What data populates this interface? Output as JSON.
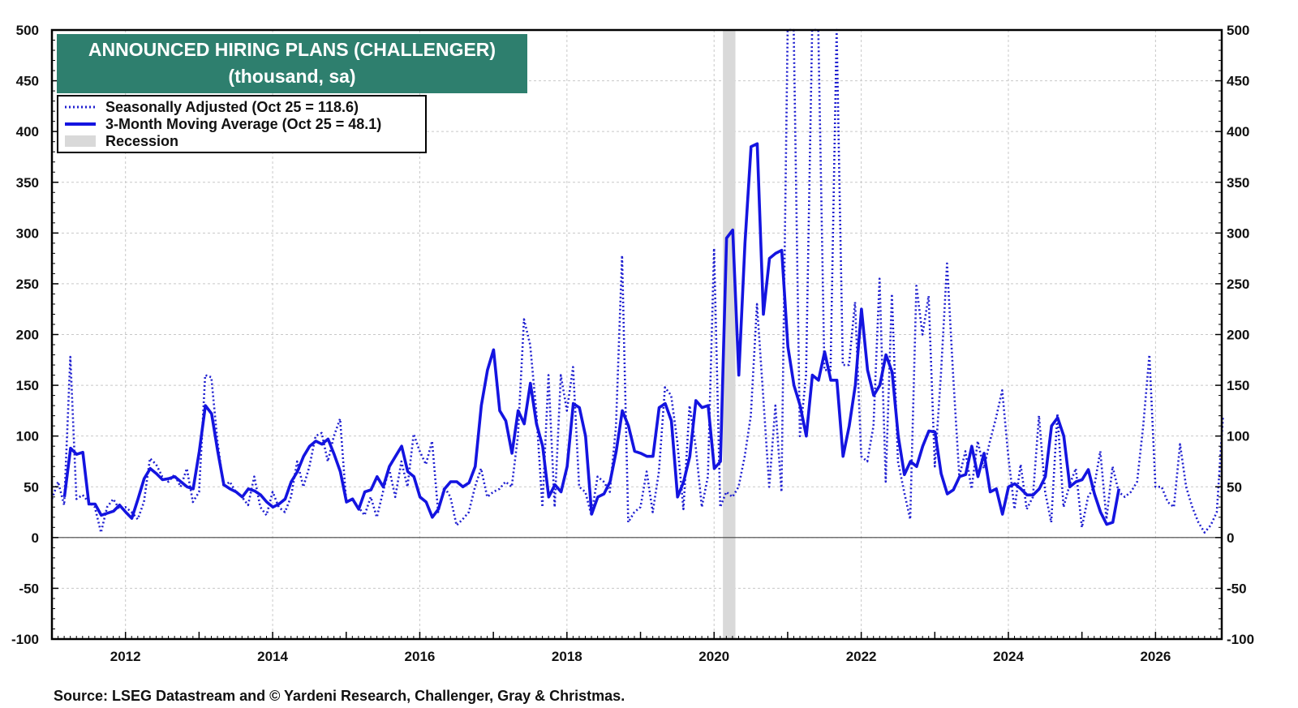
{
  "chart_data": {
    "type": "line",
    "title": "ANNOUNCED HIRING PLANS (CHALLENGER)",
    "subtitle": "(thousand, sa)",
    "ylim": [
      -100,
      500
    ],
    "yticks": [
      -100,
      -50,
      0,
      50,
      100,
      150,
      200,
      250,
      300,
      350,
      400,
      450,
      500
    ],
    "xlim": [
      2011.0,
      2026.9
    ],
    "xticks": [
      2012,
      2014,
      2016,
      2018,
      2020,
      2022,
      2024,
      2026
    ],
    "grid": true,
    "legend_position": "top-left",
    "recession": [
      2020.12,
      2020.29
    ],
    "series": [
      {
        "name": "Seasonally Adjusted (Oct 25 = 118.6)",
        "style": "dotted",
        "color": "#1f1fd0",
        "x_start": 2011.0,
        "step": 0.08333,
        "values": [
          38,
          55,
          32,
          178,
          38,
          42,
          35,
          30,
          5,
          30,
          38,
          28,
          30,
          25,
          18,
          35,
          78,
          72,
          60,
          55,
          62,
          50,
          68,
          35,
          45,
          160,
          158,
          95,
          50,
          55,
          45,
          40,
          32,
          60,
          30,
          22,
          45,
          30,
          25,
          40,
          75,
          50,
          70,
          100,
          103,
          75,
          100,
          117,
          35,
          38,
          30,
          22,
          40,
          20,
          45,
          68,
          40,
          75,
          50,
          102,
          85,
          72,
          95,
          25,
          50,
          40,
          12,
          18,
          25,
          50,
          68,
          40,
          45,
          48,
          55,
          50,
          100,
          215,
          190,
          125,
          30,
          160,
          30,
          160,
          125,
          168,
          50,
          45,
          22,
          60,
          55,
          45,
          110,
          278,
          15,
          25,
          30,
          65,
          25,
          65,
          148,
          140,
          95,
          28,
          130,
          90,
          30,
          60,
          285,
          30,
          45,
          40,
          50,
          80,
          120,
          230,
          140,
          50,
          130,
          45,
          500,
          500,
          100,
          160,
          500,
          500,
          165,
          165,
          500,
          170,
          170,
          232,
          80,
          75,
          110,
          255,
          55,
          240,
          75,
          45,
          18,
          248,
          200,
          238,
          70,
          160,
          270,
          160,
          60,
          85,
          48,
          95,
          68,
          95,
          118,
          145,
          80,
          28,
          72,
          28,
          40,
          120,
          45,
          15,
          122,
          30,
          52,
          68,
          10,
          40,
          50,
          85,
          18,
          70,
          45,
          40,
          45,
          55,
          110,
          180,
          50,
          50,
          35,
          30,
          92,
          50,
          30,
          15,
          5,
          12,
          25,
          118.6
        ]
      },
      {
        "name": "3-Month Moving Average (Oct 25 = 48.1)",
        "style": "solid",
        "color": "#1414e0",
        "x_start": 2011.17,
        "step": 0.08333,
        "values": [
          40,
          88,
          82,
          84,
          33,
          33,
          22,
          24,
          26,
          32,
          25,
          19,
          38,
          58,
          68,
          63,
          57,
          58,
          60,
          55,
          50,
          48,
          85,
          130,
          122,
          85,
          52,
          48,
          45,
          40,
          48,
          46,
          42,
          35,
          30,
          33,
          38,
          55,
          65,
          80,
          90,
          95,
          92,
          97,
          82,
          65,
          35,
          38,
          28,
          45,
          47,
          60,
          50,
          70,
          80,
          90,
          65,
          60,
          40,
          35,
          20,
          28,
          48,
          55,
          55,
          50,
          54,
          70,
          130,
          165,
          185,
          125,
          115,
          83,
          125,
          112,
          152,
          112,
          90,
          40,
          52,
          45,
          70,
          132,
          128,
          100,
          23,
          40,
          43,
          55,
          85,
          125,
          110,
          85,
          83,
          80,
          80,
          128,
          132,
          115,
          40,
          55,
          80,
          135,
          128,
          130,
          68,
          75,
          295,
          303,
          160,
          290,
          385,
          388,
          220,
          275,
          280,
          283,
          188,
          150,
          130,
          100,
          160,
          155,
          183,
          155,
          155,
          80,
          110,
          150,
          225,
          165,
          140,
          150,
          180,
          163,
          100,
          62,
          75,
          70,
          90,
          105,
          104,
          63,
          43,
          47,
          60,
          62,
          90,
          60,
          83,
          45,
          48,
          23,
          50,
          53,
          48,
          42,
          42,
          48,
          60,
          110,
          118,
          100,
          50,
          55,
          57,
          67,
          43,
          25,
          13,
          15,
          48.1
        ]
      }
    ],
    "legend": [
      {
        "label": "Seasonally Adjusted (Oct 25 = 118.6)",
        "swatch": "dotted",
        "color": "#1f1fd0"
      },
      {
        "label": "3-Month Moving Average (Oct 25 = 48.1)",
        "swatch": "solid",
        "color": "#1414e0"
      },
      {
        "label": "Recession",
        "swatch": "box",
        "color": "#d9d9d9"
      }
    ],
    "source": "Source: LSEG Datastream and © Yardeni Research, Challenger, Gray & Christmas.",
    "colors": {
      "title_bg": "#2e7f6e",
      "recession": "#d9d9d9"
    }
  }
}
